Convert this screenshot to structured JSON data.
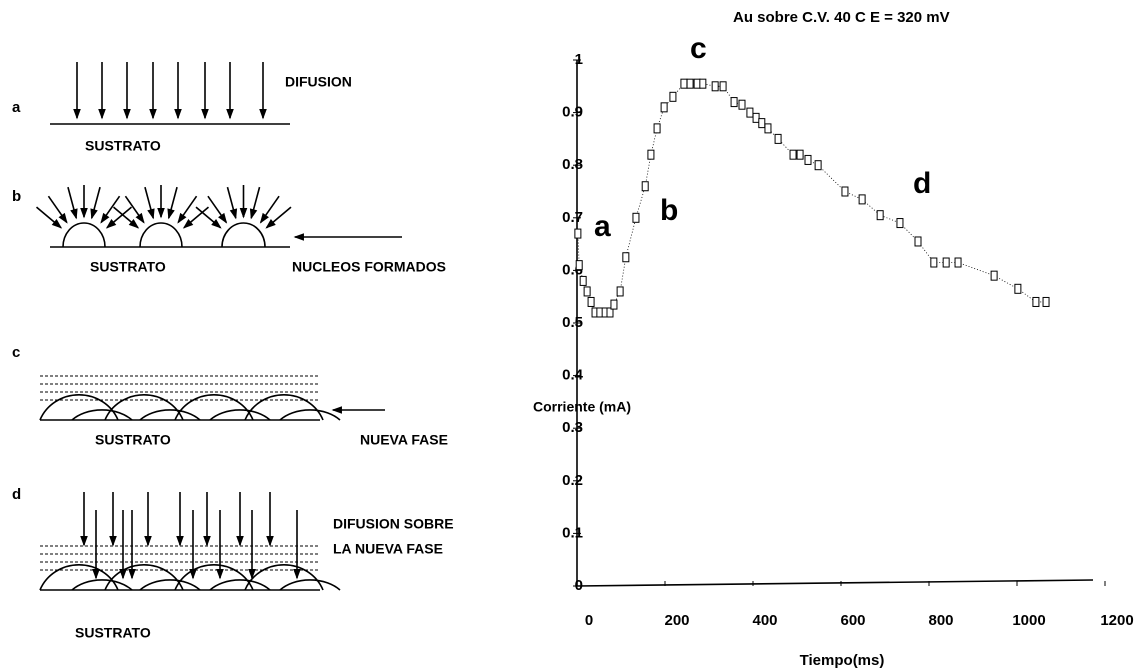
{
  "diagram": {
    "panels": [
      {
        "letter": "a",
        "substrate": "SUSTRATO",
        "labels": [
          "DIFUSION"
        ]
      },
      {
        "letter": "b",
        "substrate": "SUSTRATO",
        "labels": [
          "NUCLEOS FORMADOS"
        ]
      },
      {
        "letter": "c",
        "substrate": "SUSTRATO",
        "labels": [
          "NUEVA FASE"
        ]
      },
      {
        "letter": "d",
        "substrate": "SUSTRATO",
        "labels": [
          "DIFUSION SOBRE",
          "LA NUEVA FASE"
        ]
      }
    ]
  },
  "chart_data": {
    "type": "scatter",
    "title": "Au sobre C.V. 40 C  E = 320 mV",
    "xlabel": "Tiempo(ms)",
    "ylabel": "Corriente (mA)",
    "xlim": [
      0,
      1200
    ],
    "ylim": [
      0,
      1
    ],
    "xticks": [
      0,
      200,
      400,
      600,
      800,
      1000,
      1200
    ],
    "yticks": [
      0,
      0.1,
      0.2,
      0.3,
      0.4,
      0.5,
      0.6,
      0.7,
      0.8,
      0.9,
      1
    ],
    "annotations": [
      "a",
      "b",
      "c",
      "d"
    ],
    "color": "#000000",
    "x": [
      2,
      5,
      14,
      23,
      32,
      41,
      52,
      64,
      75,
      84,
      98,
      111,
      134,
      155,
      168,
      182,
      198,
      218,
      243,
      257,
      273,
      286,
      314,
      332,
      357,
      375,
      393,
      407,
      420,
      434,
      457,
      491,
      507,
      525,
      548,
      609,
      648,
      689,
      734,
      775,
      811,
      839,
      866,
      948,
      1002,
      1043,
      1066
    ],
    "values": [
      0.67,
      0.61,
      0.58,
      0.56,
      0.54,
      0.52,
      0.52,
      0.52,
      0.52,
      0.535,
      0.56,
      0.625,
      0.7,
      0.76,
      0.82,
      0.87,
      0.91,
      0.93,
      0.955,
      0.955,
      0.955,
      0.955,
      0.95,
      0.95,
      0.92,
      0.915,
      0.9,
      0.89,
      0.88,
      0.87,
      0.85,
      0.82,
      0.82,
      0.81,
      0.8,
      0.75,
      0.735,
      0.705,
      0.69,
      0.655,
      0.615,
      0.615,
      0.615,
      0.59,
      0.565,
      0.54,
      0.54
    ]
  }
}
